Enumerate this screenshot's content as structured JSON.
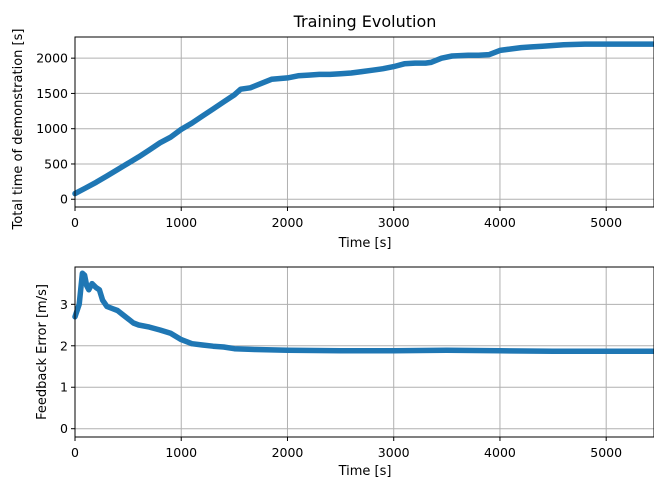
{
  "chart_data": [
    {
      "type": "line",
      "title": "Training Evolution",
      "xlabel": "Time [s]",
      "ylabel": "Total time of demonstration [s]",
      "xlim": [
        0,
        5450
      ],
      "ylim": [
        -110,
        2300
      ],
      "xticks": [
        0,
        1000,
        2000,
        3000,
        4000,
        5000
      ],
      "xtick_labels": [
        "0",
        "1000",
        "2000",
        "3000",
        "4000",
        "5000"
      ],
      "yticks": [
        0,
        500,
        1000,
        1500,
        2000
      ],
      "ytick_labels": [
        "0",
        "500",
        "1000",
        "1500",
        "2000"
      ],
      "grid": true,
      "color": "#1f77b4",
      "series": [
        {
          "x": [
            0,
            100,
            200,
            300,
            400,
            500,
            600,
            700,
            800,
            900,
            1000,
            1100,
            1200,
            1300,
            1400,
            1500,
            1560,
            1650,
            1750,
            1850,
            2000,
            2100,
            2200,
            2300,
            2400,
            2500,
            2600,
            2700,
            2800,
            2900,
            3000,
            3100,
            3200,
            3300,
            3350,
            3450,
            3550,
            3700,
            3800,
            3900,
            4000,
            4100,
            4200,
            4300,
            4400,
            4500,
            4600,
            4800,
            5000,
            5200,
            5450
          ],
          "y": [
            80,
            160,
            240,
            330,
            420,
            510,
            600,
            700,
            800,
            880,
            990,
            1080,
            1180,
            1280,
            1380,
            1480,
            1560,
            1580,
            1640,
            1700,
            1720,
            1750,
            1760,
            1770,
            1770,
            1780,
            1790,
            1810,
            1830,
            1850,
            1880,
            1920,
            1930,
            1930,
            1940,
            2000,
            2030,
            2040,
            2040,
            2050,
            2110,
            2130,
            2150,
            2160,
            2170,
            2180,
            2190,
            2200,
            2200,
            2200,
            2200
          ]
        }
      ]
    },
    {
      "type": "line",
      "title": "",
      "xlabel": "Time [s]",
      "ylabel": "Feedback Error [m/s]",
      "xlim": [
        0,
        5450
      ],
      "ylim": [
        -0.2,
        3.9
      ],
      "xticks": [
        0,
        1000,
        2000,
        3000,
        4000,
        5000
      ],
      "xtick_labels": [
        "0",
        "1000",
        "2000",
        "3000",
        "4000",
        "5000"
      ],
      "yticks": [
        0,
        1,
        2,
        3
      ],
      "ytick_labels": [
        "0",
        "1",
        "2",
        "3"
      ],
      "grid": true,
      "color": "#1f77b4",
      "series": [
        {
          "x": [
            0,
            40,
            70,
            90,
            110,
            130,
            160,
            200,
            230,
            260,
            300,
            350,
            400,
            450,
            500,
            550,
            600,
            700,
            800,
            900,
            1000,
            1100,
            1200,
            1300,
            1400,
            1500,
            1700,
            2000,
            2500,
            3000,
            3500,
            4000,
            4500,
            5000,
            5450
          ],
          "y": [
            2.7,
            3.0,
            3.75,
            3.7,
            3.45,
            3.35,
            3.5,
            3.4,
            3.35,
            3.1,
            2.95,
            2.9,
            2.85,
            2.75,
            2.65,
            2.55,
            2.5,
            2.45,
            2.38,
            2.3,
            2.15,
            2.05,
            2.02,
            1.99,
            1.97,
            1.93,
            1.91,
            1.89,
            1.88,
            1.88,
            1.89,
            1.88,
            1.87,
            1.87,
            1.87
          ]
        }
      ]
    }
  ]
}
